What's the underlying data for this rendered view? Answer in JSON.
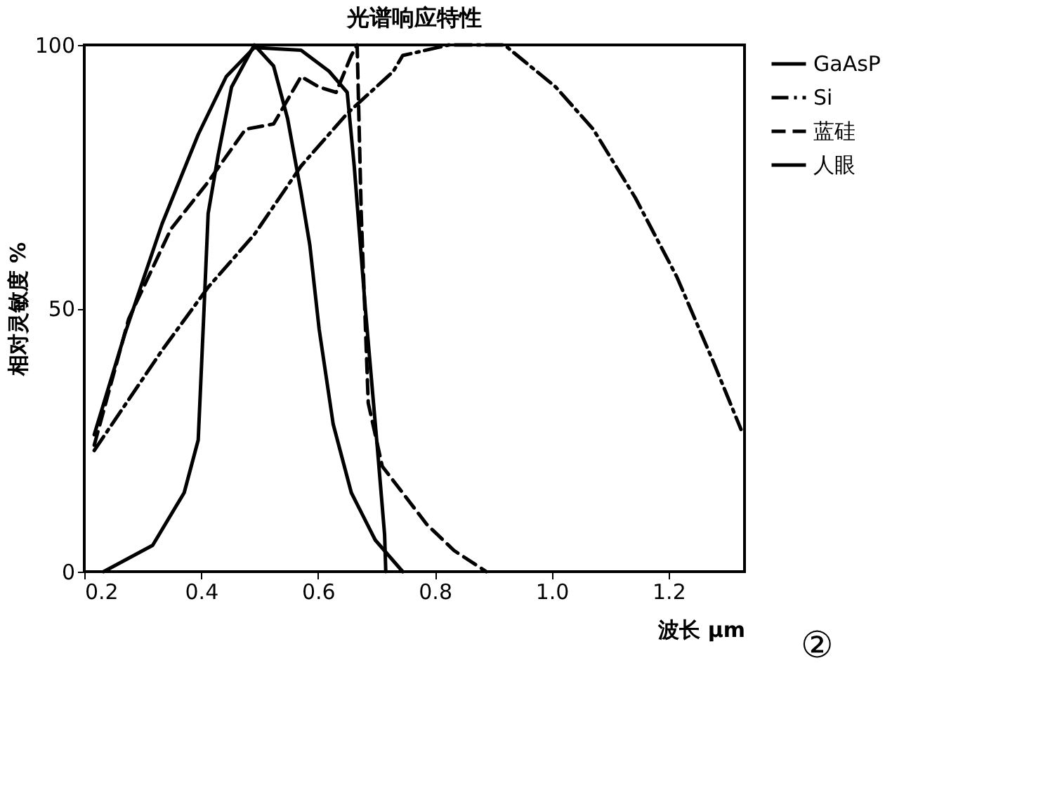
{
  "chart_data": {
    "type": "line",
    "title": "光谱响应特性",
    "xlabel": "波长 μm",
    "ylabel": "相对灵敏度 %",
    "xlim": [
      0.2,
      1.33
    ],
    "xticks": [
      0.2,
      0.4,
      0.6,
      0.8,
      {
        "value": 1.0,
        "label": "1.0"
      },
      1.2
    ],
    "ylim": [
      0,
      100
    ],
    "yticks": [
      0,
      50,
      100
    ],
    "grid": false,
    "legend": "right",
    "marker": "none",
    "annotations": [
      "②"
    ],
    "series": [
      {
        "name": "GaAsP",
        "color": "#000000",
        "line_style": "solid",
        "x": [
          0.217,
          0.269,
          0.333,
          0.395,
          0.443,
          0.491,
          0.571,
          0.619,
          0.65,
          0.662,
          0.681,
          0.702,
          0.714,
          0.716
        ],
        "values": [
          26,
          45,
          66,
          83,
          94,
          99.5,
          99,
          95,
          91,
          77,
          50,
          23,
          7,
          0
        ]
      },
      {
        "name": "Si",
        "color": "#000000",
        "line_style": "dashdot",
        "x": [
          0.217,
          0.333,
          0.412,
          0.491,
          0.571,
          0.65,
          0.729,
          0.745,
          0.824,
          0.919,
          1.007,
          1.071,
          1.143,
          1.214,
          1.276,
          1.324
        ],
        "values": [
          23,
          42,
          54,
          64,
          77,
          87,
          95,
          98,
          100,
          100,
          92,
          84,
          71,
          56,
          40,
          27
        ]
      },
      {
        "name": "蓝硅",
        "color": "#000000",
        "line_style": "dashed",
        "x": [
          0.217,
          0.276,
          0.348,
          0.412,
          0.476,
          0.524,
          0.571,
          0.602,
          0.631,
          0.657,
          0.667,
          0.674,
          0.686,
          0.71,
          0.786,
          0.833,
          0.888
        ],
        "values": [
          24,
          48,
          65,
          74,
          84,
          85,
          94,
          92,
          91,
          98,
          100,
          68,
          32,
          20,
          9,
          4,
          0
        ]
      },
      {
        "name": "人眼",
        "color": "#000000",
        "line_style": "solid",
        "x": [
          0.233,
          0.317,
          0.371,
          0.395,
          0.405,
          0.412,
          0.429,
          0.452,
          0.491,
          0.524,
          0.548,
          0.571,
          0.586,
          0.602,
          0.626,
          0.657,
          0.698,
          0.745
        ],
        "values": [
          0,
          5,
          15,
          25,
          50,
          68,
          79,
          92,
          100,
          96,
          86,
          72,
          62,
          46,
          28,
          15,
          6,
          0
        ]
      }
    ]
  }
}
